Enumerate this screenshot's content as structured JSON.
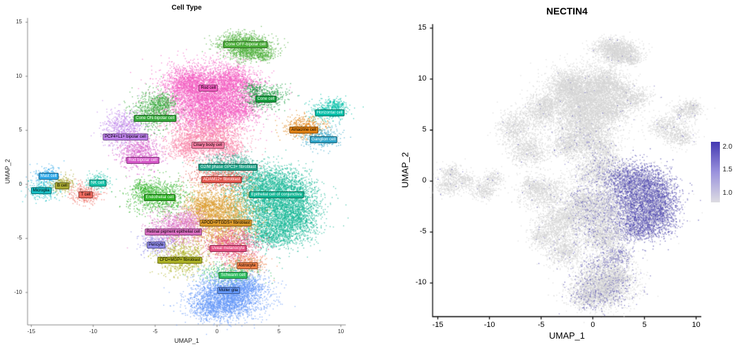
{
  "chart_data": [
    {
      "type": "scatter",
      "id": "celltype_umap",
      "title": "Cell Type",
      "xlabel": "UMAP_1",
      "ylabel": "UMAP_2",
      "xlim": [
        -15.3,
        10.4
      ],
      "ylim": [
        -13.0,
        15.4
      ],
      "xticks": [
        -15,
        -10,
        -5,
        0,
        5,
        10
      ],
      "yticks": [
        15,
        10,
        5,
        0,
        -5,
        -10
      ],
      "legend_position": "labels-on-plot",
      "clusters": [
        {
          "label": "Rod cell",
          "color": "#F25CC1",
          "lx": -0.7,
          "ly": 8.9,
          "expr": 0.005,
          "blobs": [
            {
              "x": -0.6,
              "y": 8.2,
              "sx": 1.9,
              "sy": 1.4,
              "n": 4200
            },
            {
              "x": -2.4,
              "y": 9.4,
              "sx": 0.9,
              "sy": 0.8,
              "n": 800
            },
            {
              "x": 1.4,
              "y": 9.6,
              "sx": 0.9,
              "sy": 0.7,
              "n": 700
            },
            {
              "x": -0.9,
              "y": 6.1,
              "sx": 1.2,
              "sy": 0.8,
              "n": 700
            },
            {
              "x": 1.8,
              "y": 7.0,
              "sx": 0.8,
              "sy": 0.6,
              "n": 400
            }
          ]
        },
        {
          "label": "Cone OFF-bipolar cell",
          "color": "#4DAF3B",
          "lx": 2.3,
          "ly": 12.9,
          "expr": 0.01,
          "blobs": [
            {
              "x": 1.7,
              "y": 13.1,
              "sx": 0.9,
              "sy": 0.55,
              "n": 700
            },
            {
              "x": 3.1,
              "y": 12.7,
              "sx": 0.8,
              "sy": 0.5,
              "n": 500
            },
            {
              "x": 2.4,
              "y": 12.2,
              "sx": 0.7,
              "sy": 0.4,
              "n": 300
            },
            {
              "x": 3.8,
              "y": 11.9,
              "sx": 0.35,
              "sy": 0.25,
              "n": 120
            }
          ]
        },
        {
          "label": "Cone cell",
          "color": "#169C3E",
          "lx": 3.95,
          "ly": 7.9,
          "expr": 0.01,
          "blobs": [
            {
              "x": 3.9,
              "y": 8.1,
              "sx": 0.85,
              "sy": 0.55,
              "n": 450
            },
            {
              "x": 2.9,
              "y": 8.9,
              "sx": 0.4,
              "sy": 0.3,
              "n": 120
            }
          ]
        },
        {
          "label": "Cone ON-bipolar cell",
          "color": "#35A83A",
          "lx": -5.0,
          "ly": 6.1,
          "expr": 0.01,
          "blobs": [
            {
              "x": -5.2,
              "y": 6.9,
              "sx": 0.85,
              "sy": 0.9,
              "n": 700
            },
            {
              "x": -4.3,
              "y": 7.7,
              "sx": 0.5,
              "sy": 0.4,
              "n": 200
            }
          ]
        },
        {
          "label": "PCP4+L1+ bipolar cell",
          "color": "#BB7FE8",
          "lx": -7.4,
          "ly": 4.4,
          "expr": 0.01,
          "blobs": [
            {
              "x": -7.6,
              "y": 5.3,
              "sx": 0.8,
              "sy": 0.85,
              "n": 600
            }
          ]
        },
        {
          "label": "Ciliary body cell",
          "color": "#F77FA4",
          "lx": -0.75,
          "ly": 3.6,
          "expr": 0.04,
          "blobs": [
            {
              "x": -0.8,
              "y": 4.4,
              "sx": 1.5,
              "sy": 1.0,
              "n": 1400
            },
            {
              "x": -2.6,
              "y": 3.5,
              "sx": 0.8,
              "sy": 0.6,
              "n": 400
            },
            {
              "x": 0.8,
              "y": 3.3,
              "sx": 0.7,
              "sy": 0.5,
              "n": 300
            }
          ]
        },
        {
          "label": "Rod bipolar cell",
          "color": "#D557C8",
          "lx": -6.0,
          "ly": 2.2,
          "expr": 0.01,
          "blobs": [
            {
              "x": -6.2,
              "y": 3.0,
              "sx": 0.9,
              "sy": 0.8,
              "n": 650
            }
          ]
        },
        {
          "label": "Horizontal cell",
          "color": "#00BFA8",
          "lx": 9.1,
          "ly": 6.6,
          "expr": 0.02,
          "blobs": [
            {
              "x": 8.9,
              "y": 6.9,
              "sx": 0.8,
              "sy": 0.5,
              "n": 350
            },
            {
              "x": 9.6,
              "y": 7.4,
              "sx": 0.4,
              "sy": 0.3,
              "n": 120
            }
          ]
        },
        {
          "label": "Amacrine cell",
          "color": "#E08214",
          "lx": 7.0,
          "ly": 5.0,
          "expr": 0.02,
          "blobs": [
            {
              "x": 7.0,
              "y": 5.4,
              "sx": 0.85,
              "sy": 0.5,
              "n": 400
            }
          ]
        },
        {
          "label": "Ganglion cell",
          "color": "#2FA3C7",
          "lx": 8.6,
          "ly": 4.1,
          "expr": 0.02,
          "blobs": [
            {
              "x": 8.5,
              "y": 4.4,
              "sx": 0.8,
              "sy": 0.5,
              "n": 350
            }
          ]
        },
        {
          "label": "Mast cell",
          "color": "#2FA8E8",
          "lx": -13.6,
          "ly": 0.75,
          "expr": 0.01,
          "blobs": [
            {
              "x": -13.8,
              "y": 0.9,
              "sx": 0.5,
              "sy": 0.42,
              "n": 220
            }
          ]
        },
        {
          "label": "Microglia",
          "color": "#19BEC4",
          "lx": -14.2,
          "ly": -0.56,
          "expr": 0.01,
          "blobs": [
            {
              "x": -14.1,
              "y": -0.5,
              "sx": 0.6,
              "sy": 0.45,
              "n": 260
            }
          ]
        },
        {
          "label": "B cell",
          "color": "#A8A832",
          "lx": -12.5,
          "ly": -0.13,
          "expr": 0.01,
          "blobs": [
            {
              "x": -12.5,
              "y": 0.1,
              "sx": 0.5,
              "sy": 0.4,
              "n": 200
            }
          ]
        },
        {
          "label": "T cell",
          "color": "#EE6A5F",
          "lx": -10.6,
          "ly": -0.94,
          "expr": 0.01,
          "blobs": [
            {
              "x": -10.6,
              "y": -0.8,
              "sx": 0.65,
              "sy": 0.5,
              "n": 320
            }
          ]
        },
        {
          "label": "NK cell",
          "color": "#16C2A8",
          "lx": -9.65,
          "ly": 0.12,
          "expr": 0.01,
          "blobs": [
            {
              "x": -9.7,
              "y": 0.3,
              "sx": 0.5,
              "sy": 0.4,
              "n": 180
            }
          ]
        },
        {
          "label": "G2/M phase GPC3+ fibroblast",
          "color": "#1FA187",
          "lx": 0.9,
          "ly": 1.6,
          "expr": 0.12,
          "blobs": [
            {
              "x": 0.9,
              "y": 1.9,
              "sx": 1.1,
              "sy": 0.5,
              "n": 450
            }
          ]
        },
        {
          "label": "ADAM12+ fibroblast",
          "color": "#E4564E",
          "lx": 0.37,
          "ly": 0.44,
          "expr": 0.12,
          "blobs": [
            {
              "x": 0.4,
              "y": 0.7,
              "sx": 1.3,
              "sy": 0.55,
              "n": 650
            }
          ]
        },
        {
          "label": "Epithelial cell of conjunctiva",
          "color": "#14B795",
          "lx": 4.8,
          "ly": -0.94,
          "expr": 0.8,
          "blobs": [
            {
              "x": 4.6,
              "y": -2.1,
              "sx": 1.6,
              "sy": 1.6,
              "n": 3200
            },
            {
              "x": 3.9,
              "y": 0.2,
              "sx": 1.5,
              "sy": 0.8,
              "n": 1100
            },
            {
              "x": 6.4,
              "y": -3.2,
              "sx": 0.9,
              "sy": 1.0,
              "n": 800
            },
            {
              "x": 4.1,
              "y": -4.7,
              "sx": 1.0,
              "sy": 0.6,
              "n": 500
            },
            {
              "x": 6.7,
              "y": -0.8,
              "sx": 0.6,
              "sy": 0.7,
              "n": 300
            }
          ]
        },
        {
          "label": "Endothelial cell",
          "color": "#2DB224",
          "lx": -4.63,
          "ly": -1.25,
          "expr": 0.02,
          "blobs": [
            {
              "x": -4.7,
              "y": -1.1,
              "sx": 1.2,
              "sy": 0.85,
              "n": 850
            },
            {
              "x": -6.0,
              "y": -0.5,
              "sx": 0.5,
              "sy": 0.4,
              "n": 180
            }
          ]
        },
        {
          "label": "APOD+PTGDS+ fibroblast",
          "color": "#DB9A2B",
          "lx": 0.7,
          "ly": -3.6,
          "expr": 0.15,
          "blobs": [
            {
              "x": 0.3,
              "y": -3.0,
              "sx": 1.4,
              "sy": 1.5,
              "n": 2300
            },
            {
              "x": -1.2,
              "y": -2.0,
              "sx": 0.7,
              "sy": 0.6,
              "n": 400
            }
          ]
        },
        {
          "label": "Retinal pigment epithelial cell",
          "color": "#DB6FC3",
          "lx": -3.52,
          "ly": -4.38,
          "expr": 0.02,
          "blobs": [
            {
              "x": -3.5,
              "y": -4.1,
              "sx": 1.1,
              "sy": 0.9,
              "n": 800
            },
            {
              "x": -2.2,
              "y": -3.4,
              "sx": 0.6,
              "sy": 0.5,
              "n": 250
            }
          ]
        },
        {
          "label": "Pericyte",
          "color": "#8F8AE8",
          "lx": -4.91,
          "ly": -5.63,
          "expr": 0.02,
          "blobs": [
            {
              "x": -4.9,
              "y": -5.4,
              "sx": 0.7,
              "sy": 0.5,
              "n": 300
            }
          ]
        },
        {
          "label": "Uveal melanocyte",
          "color": "#E34C80",
          "lx": 0.9,
          "ly": -5.9,
          "expr": 0.1,
          "blobs": [
            {
              "x": 1.2,
              "y": -5.6,
              "sx": 1.1,
              "sy": 0.8,
              "n": 850
            }
          ]
        },
        {
          "label": "CFD+MGP+ fibroblast",
          "color": "#AEB325",
          "lx": -3.0,
          "ly": -7.0,
          "expr": 0.05,
          "blobs": [
            {
              "x": -2.9,
              "y": -6.8,
              "sx": 1.0,
              "sy": 0.8,
              "n": 700
            }
          ]
        },
        {
          "label": "Astrocyte",
          "color": "#ED7F46",
          "lx": 2.42,
          "ly": -7.5,
          "expr": 0.3,
          "blobs": [
            {
              "x": 2.4,
              "y": -7.3,
              "sx": 0.85,
              "sy": 0.45,
              "n": 330
            }
          ]
        },
        {
          "label": "Schwann cell",
          "color": "#2FBE5F",
          "lx": 1.3,
          "ly": -8.4,
          "expr": 0.25,
          "blobs": [
            {
              "x": 1.1,
              "y": -8.2,
              "sx": 1.2,
              "sy": 0.45,
              "n": 380
            }
          ]
        },
        {
          "label": "Müller glia",
          "color": "#6497F7",
          "lx": 0.92,
          "ly": -9.8,
          "expr": 0.15,
          "blobs": [
            {
              "x": 0.9,
              "y": -10.3,
              "sx": 1.5,
              "sy": 1.0,
              "n": 2600
            },
            {
              "x": 2.2,
              "y": -9.4,
              "sx": 0.7,
              "sy": 0.5,
              "n": 400
            },
            {
              "x": -0.4,
              "y": -11.5,
              "sx": 0.9,
              "sy": 0.5,
              "n": 450
            }
          ]
        }
      ]
    },
    {
      "type": "scatter",
      "id": "nectin4_featureplot",
      "title": "NECTIN4",
      "xlabel": "UMAP_1",
      "ylabel": "UMAP_2",
      "xlim": [
        -15.5,
        10.5
      ],
      "ylim": [
        -13.3,
        15.4
      ],
      "xticks": [
        -15,
        -10,
        -5,
        0,
        5,
        10
      ],
      "yticks": [
        15,
        10,
        5,
        0,
        -5,
        -10
      ],
      "embedding_shared_with": "Cell Type",
      "colorbar": {
        "labels": [
          "2.0",
          "1.5",
          "1.0"
        ],
        "gradient": [
          "#4338B2",
          "#9A92DD",
          "#DDDCE2"
        ],
        "low": "#D5D5D5",
        "mid_low": "#A9A3D6",
        "high": "#3730A3"
      }
    }
  ]
}
